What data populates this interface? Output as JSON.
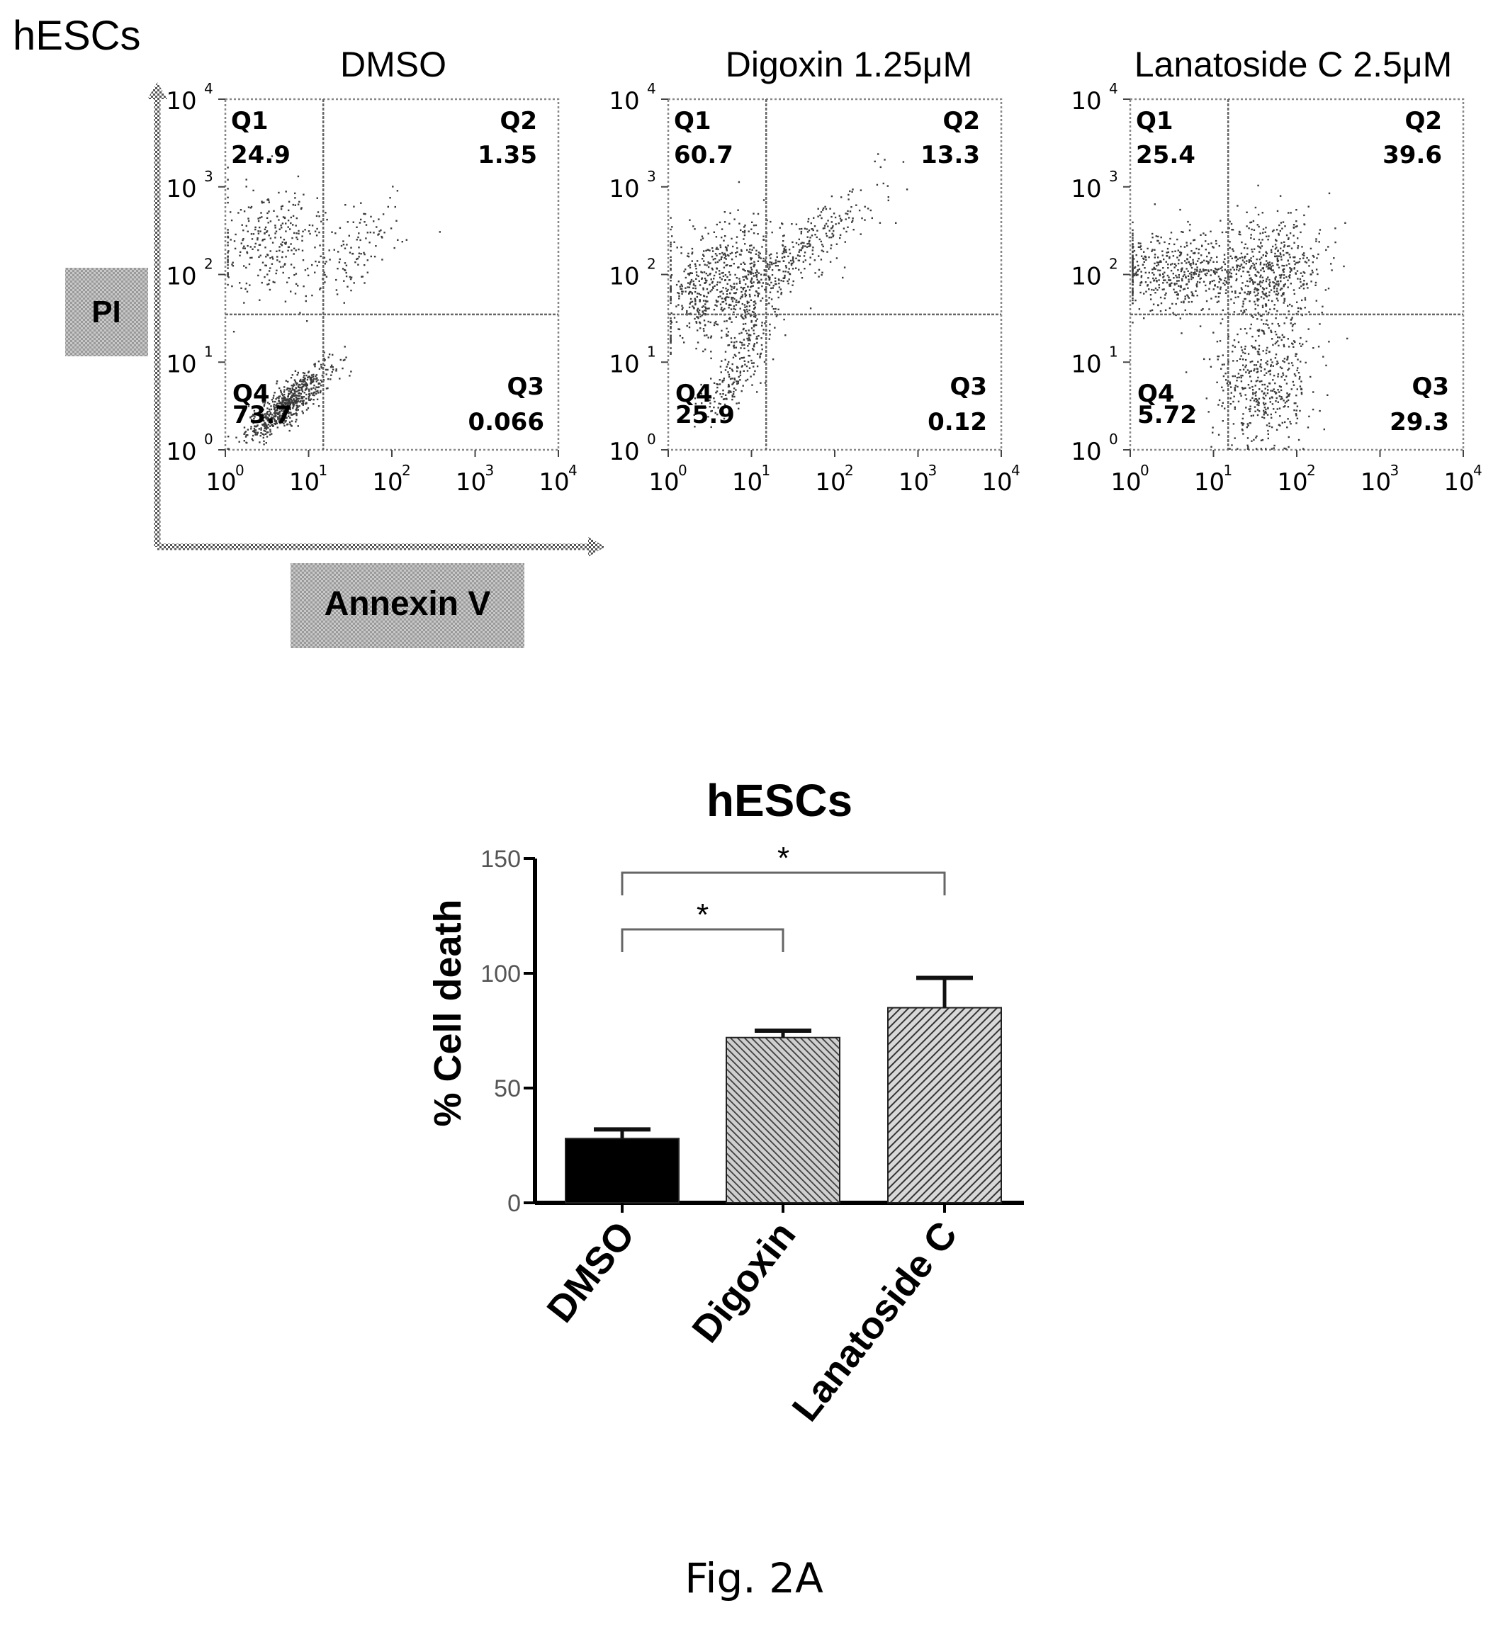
{
  "figure_caption": "Fig. 2A",
  "panel_label": "hESCs",
  "flow": {
    "y_axis_label": "PI",
    "x_axis_label": "Annexin V",
    "tick_labels": [
      "10",
      "10",
      "10",
      "10",
      "10"
    ],
    "tick_exponents": [
      "0",
      "1",
      "2",
      "3",
      "4"
    ]
  },
  "chart_data": [
    {
      "type": "scatter",
      "title": "DMSO",
      "xlabel": "Annexin V",
      "ylabel": "PI",
      "x_scale": "log",
      "y_scale": "log",
      "xlim": [
        1,
        10000
      ],
      "ylim": [
        1,
        10000
      ],
      "gate": {
        "x": 15,
        "y": 35
      },
      "quadrants": [
        {
          "name": "Q1",
          "value": "24.9",
          "pos": "top-left"
        },
        {
          "name": "Q2",
          "value": "1.35",
          "pos": "top-right"
        },
        {
          "name": "Q3",
          "value": "0.066",
          "pos": "bottom-right"
        },
        {
          "name": "Q4",
          "value": "73.7",
          "pos": "bottom-left"
        }
      ]
    },
    {
      "type": "scatter",
      "title": "Digoxin 1.25μM",
      "xlabel": "Annexin V",
      "ylabel": "PI",
      "x_scale": "log",
      "y_scale": "log",
      "xlim": [
        1,
        10000
      ],
      "ylim": [
        1,
        10000
      ],
      "gate": {
        "x": 15,
        "y": 35
      },
      "quadrants": [
        {
          "name": "Q1",
          "value": "60.7",
          "pos": "top-left"
        },
        {
          "name": "Q2",
          "value": "13.3",
          "pos": "top-right"
        },
        {
          "name": "Q3",
          "value": "0.12",
          "pos": "bottom-right"
        },
        {
          "name": "Q4",
          "value": "25.9",
          "pos": "bottom-left"
        }
      ]
    },
    {
      "type": "scatter",
      "title": "Lanatoside C 2.5μM",
      "xlabel": "Annexin V",
      "ylabel": "PI",
      "x_scale": "log",
      "y_scale": "log",
      "xlim": [
        1,
        10000
      ],
      "ylim": [
        1,
        10000
      ],
      "gate": {
        "x": 15,
        "y": 35
      },
      "quadrants": [
        {
          "name": "Q1",
          "value": "25.4",
          "pos": "top-left"
        },
        {
          "name": "Q2",
          "value": "39.6",
          "pos": "top-right"
        },
        {
          "name": "Q3",
          "value": "29.3",
          "pos": "bottom-right"
        },
        {
          "name": "Q4",
          "value": "5.72",
          "pos": "bottom-left"
        }
      ]
    },
    {
      "type": "bar",
      "title": "hESCs",
      "ylabel": "% Cell death",
      "categories": [
        "DMSO",
        "Digoxin",
        "Lanatoside C"
      ],
      "values": [
        28,
        72,
        85
      ],
      "errors": [
        4,
        3,
        13
      ],
      "ylim": [
        0,
        150
      ],
      "yticks": [
        "0",
        "50",
        "100",
        "150"
      ],
      "bar_fills": [
        "solid",
        "hatched",
        "hatched"
      ],
      "significance": [
        {
          "from": "DMSO",
          "to": "Digoxin",
          "label": "*"
        },
        {
          "from": "DMSO",
          "to": "Lanatoside C",
          "label": "*"
        }
      ]
    }
  ]
}
